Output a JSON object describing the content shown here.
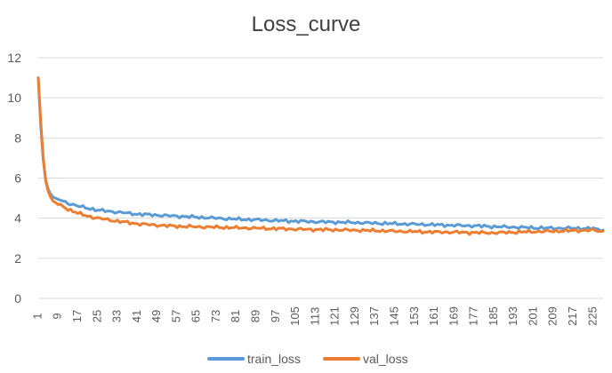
{
  "chart_data": {
    "type": "line",
    "title": "Loss_curve",
    "xlabel": "",
    "ylabel": "",
    "ylim": [
      0,
      12
    ],
    "yticks": [
      0,
      2,
      4,
      6,
      8,
      10,
      12
    ],
    "x_range": [
      1,
      229
    ],
    "xtick_labels": [
      "1",
      "9",
      "17",
      "25",
      "33",
      "41",
      "49",
      "57",
      "65",
      "73",
      "81",
      "89",
      "97",
      "105",
      "113",
      "121",
      "129",
      "137",
      "145",
      "153",
      "161",
      "169",
      "177",
      "185",
      "193",
      "201",
      "209",
      "217",
      "225"
    ],
    "grid": "horizontal",
    "legend_position": "bottom",
    "series": [
      {
        "name": "train_loss",
        "color": "#5B9BD5",
        "points": [
          [
            1,
            11.0
          ],
          [
            2,
            8.6
          ],
          [
            3,
            6.9
          ],
          [
            4,
            5.9
          ],
          [
            5,
            5.45
          ],
          [
            6,
            5.2
          ],
          [
            7,
            5.05
          ],
          [
            9,
            4.95
          ],
          [
            13,
            4.75
          ],
          [
            17,
            4.6
          ],
          [
            21,
            4.5
          ],
          [
            25,
            4.4
          ],
          [
            33,
            4.3
          ],
          [
            41,
            4.2
          ],
          [
            49,
            4.15
          ],
          [
            57,
            4.1
          ],
          [
            65,
            4.05
          ],
          [
            73,
            4.0
          ],
          [
            81,
            3.95
          ],
          [
            89,
            3.92
          ],
          [
            97,
            3.88
          ],
          [
            105,
            3.85
          ],
          [
            113,
            3.82
          ],
          [
            121,
            3.8
          ],
          [
            129,
            3.78
          ],
          [
            137,
            3.75
          ],
          [
            145,
            3.72
          ],
          [
            153,
            3.7
          ],
          [
            161,
            3.67
          ],
          [
            169,
            3.64
          ],
          [
            177,
            3.62
          ],
          [
            185,
            3.58
          ],
          [
            193,
            3.55
          ],
          [
            201,
            3.52
          ],
          [
            209,
            3.5
          ],
          [
            217,
            3.5
          ],
          [
            225,
            3.48
          ],
          [
            229,
            3.4
          ]
        ]
      },
      {
        "name": "val_loss",
        "color": "#ED7D31",
        "points": [
          [
            1,
            11.0
          ],
          [
            2,
            8.8
          ],
          [
            3,
            7.0
          ],
          [
            4,
            5.85
          ],
          [
            5,
            5.35
          ],
          [
            6,
            5.05
          ],
          [
            7,
            4.85
          ],
          [
            9,
            4.7
          ],
          [
            13,
            4.45
          ],
          [
            17,
            4.25
          ],
          [
            21,
            4.1
          ],
          [
            25,
            4.0
          ],
          [
            33,
            3.85
          ],
          [
            41,
            3.72
          ],
          [
            49,
            3.65
          ],
          [
            57,
            3.6
          ],
          [
            65,
            3.57
          ],
          [
            73,
            3.55
          ],
          [
            81,
            3.52
          ],
          [
            89,
            3.5
          ],
          [
            97,
            3.48
          ],
          [
            105,
            3.45
          ],
          [
            113,
            3.43
          ],
          [
            121,
            3.42
          ],
          [
            129,
            3.4
          ],
          [
            137,
            3.38
          ],
          [
            145,
            3.35
          ],
          [
            153,
            3.33
          ],
          [
            161,
            3.31
          ],
          [
            169,
            3.3
          ],
          [
            177,
            3.28
          ],
          [
            185,
            3.27
          ],
          [
            193,
            3.3
          ],
          [
            201,
            3.33
          ],
          [
            209,
            3.35
          ],
          [
            217,
            3.38
          ],
          [
            225,
            3.4
          ],
          [
            229,
            3.33
          ]
        ]
      }
    ]
  }
}
